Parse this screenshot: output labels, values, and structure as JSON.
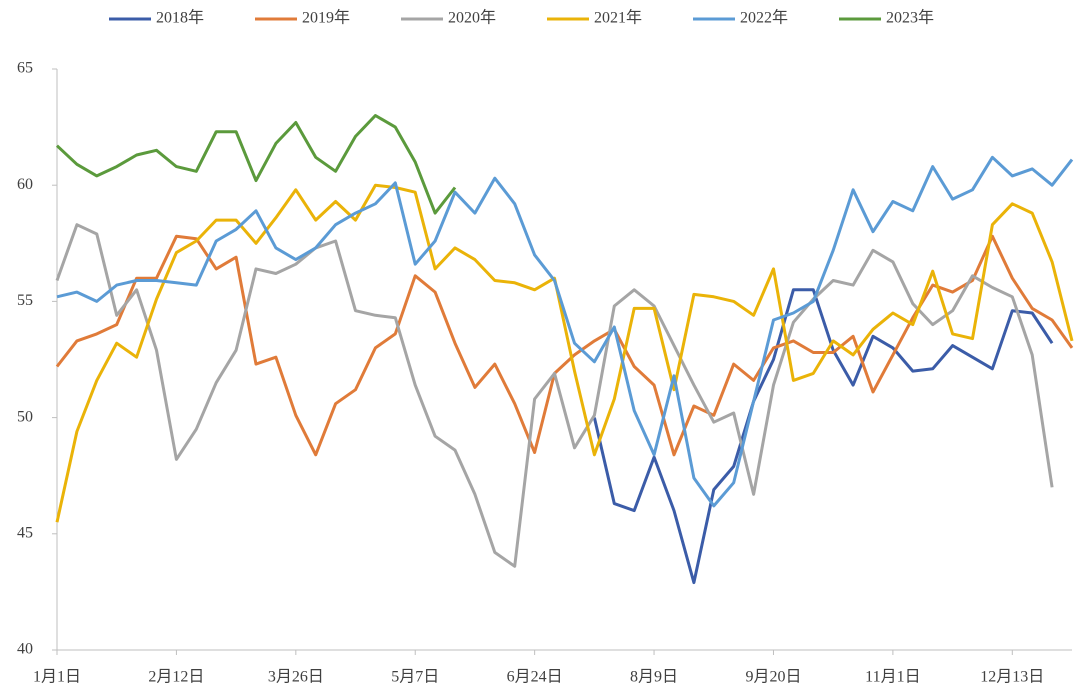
{
  "chart_data": {
    "type": "line",
    "categories": [
      "1月1日",
      null,
      null,
      null,
      null,
      null,
      "2月12日",
      null,
      null,
      null,
      null,
      null,
      "3月26日",
      null,
      null,
      null,
      null,
      null,
      "5月7日",
      null,
      null,
      null,
      null,
      null,
      "6月24日",
      null,
      null,
      null,
      null,
      null,
      "8月9日",
      null,
      null,
      null,
      null,
      null,
      "9月20日",
      null,
      null,
      null,
      null,
      null,
      "11月1日",
      null,
      null,
      null,
      null,
      null,
      "12月13日",
      null,
      null,
      null
    ],
    "ylim": [
      40,
      65
    ],
    "yticks": [
      40,
      45,
      50,
      55,
      60,
      65
    ],
    "grid": false,
    "legend": "top",
    "series": [
      {
        "name": "2018年",
        "color": "#3b5ca8",
        "values": [
          null,
          null,
          null,
          null,
          null,
          null,
          null,
          null,
          null,
          null,
          null,
          null,
          null,
          null,
          null,
          null,
          null,
          null,
          null,
          null,
          null,
          null,
          null,
          null,
          null,
          null,
          null,
          50.0,
          46.3,
          46.0,
          48.3,
          46.0,
          42.9,
          46.9,
          47.9,
          50.7,
          52.5,
          55.5,
          55.5,
          52.9,
          51.4,
          53.5,
          53.0,
          52.0,
          52.1,
          53.1,
          52.6,
          52.1,
          54.6,
          54.5,
          53.2,
          null
        ]
      },
      {
        "name": "2019年",
        "color": "#e07b39",
        "values": [
          52.2,
          53.3,
          53.6,
          54.0,
          56.0,
          56.0,
          57.8,
          57.7,
          56.4,
          56.9,
          52.3,
          52.6,
          50.1,
          48.4,
          50.6,
          51.2,
          53.0,
          53.6,
          56.1,
          55.4,
          53.2,
          51.3,
          52.3,
          50.6,
          48.5,
          51.9,
          52.7,
          53.3,
          53.8,
          52.2,
          51.4,
          48.4,
          50.5,
          50.1,
          52.3,
          51.6,
          53.0,
          53.3,
          52.8,
          52.8,
          53.5,
          51.1,
          52.7,
          54.3,
          55.7,
          55.4,
          55.9,
          57.8,
          56.0,
          54.7,
          54.2,
          53.0
        ]
      },
      {
        "name": "2020年",
        "color": "#a5a5a5",
        "values": [
          55.9,
          58.3,
          57.9,
          54.4,
          55.5,
          52.9,
          48.2,
          49.5,
          51.5,
          52.9,
          56.4,
          56.2,
          56.6,
          57.3,
          57.6,
          54.6,
          54.4,
          54.3,
          51.4,
          49.2,
          48.6,
          46.7,
          44.2,
          43.6,
          50.8,
          51.9,
          48.7,
          50.1,
          54.8,
          55.5,
          54.8,
          53.1,
          51.4,
          49.8,
          50.2,
          46.7,
          51.4,
          54.1,
          55.1,
          55.9,
          55.7,
          57.2,
          56.7,
          54.9,
          54.0,
          54.6,
          56.1,
          55.6,
          55.2,
          52.7,
          47.0,
          null
        ]
      },
      {
        "name": "2021年",
        "color": "#eab308",
        "values": [
          45.5,
          49.4,
          51.6,
          53.2,
          52.6,
          55.1,
          57.1,
          57.6,
          58.5,
          58.5,
          57.5,
          58.6,
          59.8,
          58.5,
          59.3,
          58.5,
          60.0,
          59.9,
          59.7,
          56.4,
          57.3,
          56.8,
          55.9,
          55.8,
          55.5,
          56.0,
          52.0,
          48.4,
          50.8,
          54.7,
          54.7,
          51.2,
          55.3,
          55.2,
          55.0,
          54.4,
          56.4,
          51.6,
          51.9,
          53.3,
          52.7,
          53.8,
          54.5,
          54.0,
          56.3,
          53.6,
          53.4,
          58.3,
          59.2,
          58.8,
          56.7,
          53.3
        ]
      },
      {
        "name": "2022年",
        "color": "#5b9bd5",
        "values": [
          55.2,
          55.4,
          55.0,
          55.7,
          55.9,
          55.9,
          55.8,
          55.7,
          57.6,
          58.1,
          58.9,
          57.3,
          56.8,
          57.3,
          58.3,
          58.8,
          59.2,
          60.1,
          56.6,
          57.6,
          59.7,
          58.8,
          60.3,
          59.2,
          57.0,
          55.9,
          53.2,
          52.4,
          53.9,
          50.3,
          48.4,
          51.8,
          47.4,
          46.2,
          47.2,
          50.7,
          54.2,
          54.5,
          55.0,
          57.2,
          59.8,
          58.0,
          59.3,
          58.9,
          60.8,
          59.4,
          59.8,
          61.2,
          60.4,
          60.7,
          60.0,
          61.1
        ]
      },
      {
        "name": "2023年",
        "color": "#5b9a3c",
        "values": [
          61.7,
          60.9,
          60.4,
          60.8,
          61.3,
          61.5,
          60.8,
          60.6,
          62.3,
          62.3,
          60.2,
          61.8,
          62.7,
          61.2,
          60.6,
          62.1,
          63.0,
          62.5,
          61.0,
          58.8,
          59.9,
          null,
          null,
          null,
          null,
          null,
          null,
          null,
          null,
          null,
          null,
          null,
          null,
          null,
          null,
          null,
          null,
          null,
          null,
          null,
          null,
          null,
          null,
          null,
          null,
          null,
          null,
          null,
          null,
          null,
          null,
          null
        ]
      }
    ]
  }
}
